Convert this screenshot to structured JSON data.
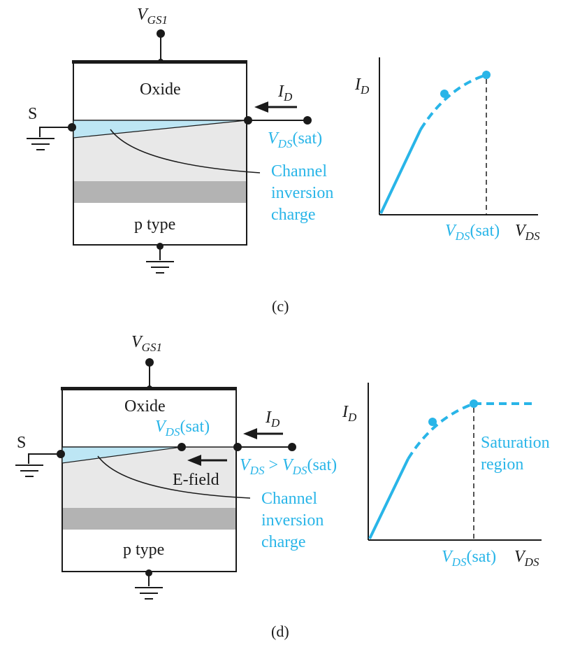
{
  "colors": {
    "ink": "#1a1a1a",
    "accent": "#29b5e8",
    "inversion_fill": "#bde6f4",
    "substrate_light": "#e8e8e8",
    "depletion_band": "#b3b3b3"
  },
  "panel_c": {
    "gate_label_main": "V",
    "gate_label_sub": "GS1",
    "oxide_label": "Oxide",
    "source_label": "S",
    "drain_current_main": "I",
    "drain_current_sub": "D",
    "vds_sat_main": "V",
    "vds_sat_sub": "DS",
    "vds_sat_tail": "(sat)",
    "channel_label_lines": [
      "Channel",
      "inversion",
      "charge"
    ],
    "substrate_label": "p type",
    "graph": {
      "y_label_main": "I",
      "y_label_sub": "D",
      "x_tick_main": "V",
      "x_tick_sub": "DS",
      "x_tick_tail": "(sat)",
      "x_label_main": "V",
      "x_label_sub": "DS"
    },
    "caption": "(c)"
  },
  "panel_d": {
    "gate_label_main": "V",
    "gate_label_sub": "GS1",
    "oxide_label": "Oxide",
    "source_label": "S",
    "pinch_label_main": "V",
    "pinch_label_sub": "DS",
    "pinch_label_tail": "(sat)",
    "drain_current_main": "I",
    "drain_current_sub": "D",
    "efield_label": "E-field",
    "vds_cond_main": "V",
    "vds_cond_sub": "DS",
    "vds_cond_op": " > ",
    "vds_cond_main2": "V",
    "vds_cond_sub2": "DS",
    "vds_cond_tail": "(sat)",
    "channel_label_lines": [
      "Channel",
      "inversion",
      "charge"
    ],
    "substrate_label": "p type",
    "graph": {
      "y_label_main": "I",
      "y_label_sub": "D",
      "region_label_lines": [
        "Saturation",
        "region"
      ],
      "x_tick_main": "V",
      "x_tick_sub": "DS",
      "x_tick_tail": "(sat)",
      "x_label_main": "V",
      "x_label_sub": "DS"
    },
    "caption": "(d)"
  }
}
